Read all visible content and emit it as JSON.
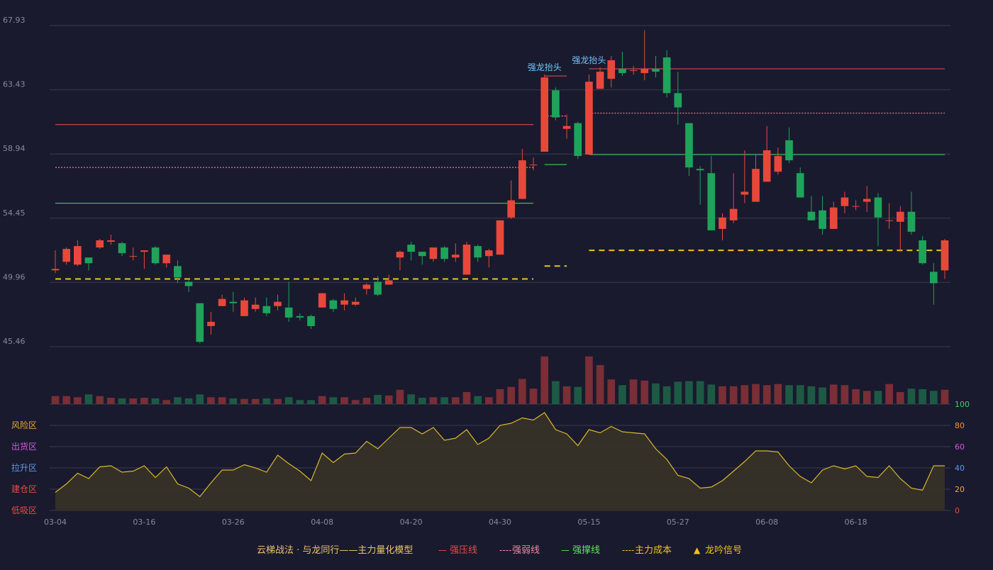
{
  "colors": {
    "background": "#191a2e",
    "grid": "#3a3b4e",
    "up": "#e8483a",
    "down": "#1fa35a",
    "up_volume": "#7a2e36",
    "down_volume": "#1d5a44",
    "pressure_line": "#d94b4b",
    "weak_line": "#e88a9a",
    "support_line": "#3db85a",
    "cost_line": "#f0c419",
    "signal_label": "#6fc8ff",
    "oscillator_line": "#d8b82a",
    "oscillator_fill": "#3a3426",
    "axis_text": "#8a8b96"
  },
  "chart_data": [
    {
      "type": "candlestick",
      "y_ticks": [
        "67.93",
        "63.43",
        "58.94",
        "54.45",
        "49.96",
        "45.46"
      ],
      "ylim": [
        45.46,
        67.93
      ],
      "x_ticks": [
        {
          "index": 0,
          "label": "03-04"
        },
        {
          "index": 8,
          "label": "03-16"
        },
        {
          "index": 16,
          "label": "03-26"
        },
        {
          "index": 24,
          "label": "04-08"
        },
        {
          "index": 32,
          "label": "04-20"
        },
        {
          "index": 40,
          "label": "04-30"
        },
        {
          "index": 48,
          "label": "05-15"
        },
        {
          "index": 56,
          "label": "05-27"
        },
        {
          "index": 64,
          "label": "06-08"
        },
        {
          "index": 72,
          "label": "06-18"
        }
      ],
      "ohlc": [
        [
          50.8,
          50.9,
          50.6,
          52.2
        ],
        [
          51.4,
          52.3,
          51.2,
          52.4
        ],
        [
          51.2,
          52.5,
          51.1,
          52.9
        ],
        [
          51.7,
          51.3,
          50.8,
          51.7
        ],
        [
          52.4,
          52.9,
          52.3,
          53.0
        ],
        [
          52.8,
          52.9,
          52.6,
          53.3
        ],
        [
          52.7,
          52.0,
          51.8,
          52.8
        ],
        [
          51.8,
          51.8,
          51.5,
          52.4
        ],
        [
          52.1,
          52.2,
          50.9,
          52.2
        ],
        [
          52.4,
          51.3,
          51.2,
          52.5
        ],
        [
          51.3,
          51.9,
          51.0,
          51.9
        ],
        [
          51.1,
          50.3,
          49.9,
          51.5
        ],
        [
          50.0,
          49.7,
          49.3,
          50.1
        ],
        [
          48.5,
          45.8,
          45.7,
          48.5
        ],
        [
          46.9,
          47.2,
          46.3,
          47.9
        ],
        [
          48.3,
          48.8,
          48.3,
          49.1
        ],
        [
          48.6,
          48.5,
          47.9,
          49.3
        ],
        [
          47.6,
          48.7,
          47.6,
          48.9
        ],
        [
          48.1,
          48.4,
          47.9,
          48.9
        ],
        [
          48.3,
          47.8,
          47.6,
          48.9
        ],
        [
          48.3,
          48.6,
          48.0,
          49.1
        ],
        [
          48.2,
          47.5,
          47.2,
          50.0
        ],
        [
          47.6,
          47.5,
          47.3,
          47.8
        ],
        [
          47.6,
          46.9,
          46.7,
          47.7
        ],
        [
          48.2,
          49.2,
          48.2,
          49.2
        ],
        [
          48.7,
          48.1,
          47.9,
          48.8
        ],
        [
          48.4,
          48.7,
          48.0,
          49.2
        ],
        [
          48.4,
          48.6,
          48.3,
          48.9
        ],
        [
          49.5,
          49.8,
          49.1,
          49.9
        ],
        [
          50.0,
          49.1,
          49.0,
          50.4
        ],
        [
          49.8,
          50.1,
          49.8,
          50.5
        ],
        [
          51.7,
          52.1,
          50.8,
          52.2
        ],
        [
          52.6,
          52.1,
          51.5,
          52.8
        ],
        [
          52.1,
          51.8,
          51.2,
          52.1
        ],
        [
          51.6,
          52.4,
          51.4,
          52.4
        ],
        [
          52.4,
          51.6,
          51.4,
          52.5
        ],
        [
          51.7,
          51.9,
          51.4,
          52.7
        ],
        [
          50.5,
          52.6,
          50.5,
          52.8
        ],
        [
          52.5,
          51.7,
          51.4,
          52.6
        ],
        [
          51.8,
          52.2,
          51.0,
          52.3
        ],
        [
          51.9,
          54.3,
          51.9,
          54.3
        ],
        [
          54.5,
          55.7,
          54.4,
          57.1
        ],
        [
          55.8,
          58.5,
          55.8,
          59.3
        ],
        [
          58.2,
          58.2,
          57.8,
          58.7
        ],
        [
          59.1,
          64.3,
          59.1,
          64.5
        ],
        [
          63.4,
          61.5,
          61.3,
          63.6
        ],
        [
          60.7,
          60.9,
          60.0,
          61.7
        ],
        [
          61.1,
          58.8,
          58.6,
          61.2
        ],
        [
          58.9,
          64.0,
          58.9,
          64.5
        ],
        [
          63.5,
          64.7,
          63.5,
          65.0
        ],
        [
          64.2,
          65.5,
          63.6,
          65.8
        ],
        [
          64.9,
          64.6,
          64.4,
          66.1
        ],
        [
          64.8,
          64.8,
          64.5,
          65.1
        ],
        [
          64.6,
          64.9,
          64.1,
          67.6
        ],
        [
          64.9,
          64.7,
          64.3,
          65.8
        ],
        [
          65.7,
          63.2,
          62.9,
          66.2
        ],
        [
          63.2,
          62.2,
          61.0,
          64.7
        ],
        [
          61.1,
          58.0,
          57.4,
          61.1
        ],
        [
          57.9,
          57.8,
          55.4,
          58.1
        ],
        [
          57.6,
          53.6,
          53.6,
          58.8
        ],
        [
          53.7,
          54.5,
          52.9,
          54.8
        ],
        [
          54.3,
          55.1,
          54.1,
          57.6
        ],
        [
          56.1,
          56.3,
          55.5,
          59.2
        ],
        [
          55.6,
          57.9,
          55.6,
          58.9
        ],
        [
          57.0,
          59.2,
          57.0,
          60.9
        ],
        [
          57.7,
          58.8,
          57.5,
          59.4
        ],
        [
          59.9,
          58.5,
          58.3,
          60.8
        ],
        [
          57.6,
          55.9,
          55.9,
          58.0
        ],
        [
          54.9,
          54.3,
          54.3,
          56.0
        ],
        [
          55.0,
          53.7,
          53.3,
          56.0
        ],
        [
          53.7,
          55.2,
          53.7,
          55.6
        ],
        [
          55.3,
          55.9,
          54.8,
          56.3
        ],
        [
          55.3,
          55.3,
          55.0,
          55.7
        ],
        [
          55.6,
          55.8,
          54.9,
          56.7
        ],
        [
          55.9,
          54.5,
          52.5,
          56.2
        ],
        [
          54.3,
          54.3,
          53.7,
          55.5
        ],
        [
          54.2,
          54.9,
          52.1,
          55.3
        ],
        [
          54.9,
          53.5,
          53.3,
          56.3
        ],
        [
          52.9,
          51.3,
          51.2,
          53.2
        ],
        [
          50.7,
          49.9,
          48.4,
          51.3
        ],
        [
          50.8,
          52.9,
          50.2,
          53.0
        ]
      ],
      "volume_ylim": [
        0,
        100
      ],
      "volumes": [
        14,
        14,
        12,
        17,
        14,
        11,
        10,
        10,
        11,
        10,
        7,
        12,
        10,
        17,
        12,
        12,
        10,
        9,
        9,
        10,
        9,
        12,
        7,
        7,
        14,
        12,
        12,
        7,
        11,
        16,
        15,
        25,
        17,
        11,
        12,
        12,
        12,
        21,
        14,
        12,
        26,
        30,
        44,
        27,
        83,
        40,
        31,
        30,
        83,
        68,
        43,
        33,
        43,
        41,
        36,
        31,
        39,
        40,
        40,
        34,
        31,
        31,
        33,
        35,
        33,
        35,
        33,
        33,
        31,
        29,
        34,
        33,
        26,
        23,
        23,
        35,
        21,
        27,
        26,
        23,
        25
      ],
      "annotations": [
        {
          "index": 44,
          "price": 64.5,
          "text": "强龙抬头"
        },
        {
          "index": 48,
          "price": 65.0,
          "text": "强龙抬头"
        }
      ],
      "series": [
        {
          "name": "强压线",
          "style": "solid",
          "color": "#d94b4b",
          "segments": [
            {
              "from": 0,
              "to": 43,
              "value": 61.0
            },
            {
              "from": 44,
              "to": 46,
              "value": 64.4
            },
            {
              "from": 48,
              "to": 80,
              "value": 64.9
            }
          ]
        },
        {
          "name": "强弱线",
          "style": "dotted",
          "color": "#e88a9a",
          "segments": [
            {
              "from": 0,
              "to": 43,
              "value": 58.0
            },
            {
              "from": 44,
              "to": 46,
              "value": 61.6
            },
            {
              "from": 48,
              "to": 80,
              "value": 61.8
            }
          ]
        },
        {
          "name": "强撑线",
          "style": "solid",
          "color": "#3db85a",
          "segments": [
            {
              "from": 0,
              "to": 43,
              "value": 55.5
            },
            {
              "from": 44,
              "to": 46,
              "value": 58.2
            },
            {
              "from": 48,
              "to": 80,
              "value": 58.9
            }
          ]
        },
        {
          "name": "主力成本",
          "style": "dashed",
          "color": "#f0c419",
          "segments": [
            {
              "from": 0,
              "to": 43,
              "value": 50.2
            },
            {
              "from": 44,
              "to": 46,
              "value": 51.1
            },
            {
              "from": 48,
              "to": 80,
              "value": 52.2
            }
          ]
        }
      ]
    },
    {
      "type": "area",
      "ylim": [
        0,
        100
      ],
      "right_ticks": [
        {
          "value": 100,
          "label": "100",
          "color": "#3fd45a"
        },
        {
          "value": 80,
          "label": "80",
          "color": "#e89a2a"
        },
        {
          "value": 60,
          "label": "60",
          "color": "#d05ad8"
        },
        {
          "value": 40,
          "label": "40",
          "color": "#5a9af0"
        },
        {
          "value": 20,
          "label": "20",
          "color": "#e8a83a"
        },
        {
          "value": 0,
          "label": "0",
          "color": "#e84a4a"
        }
      ],
      "zones": [
        {
          "value": 80,
          "label": "风险区",
          "color": "#e8a83a"
        },
        {
          "value": 60,
          "label": "出货区",
          "color": "#d05ad8"
        },
        {
          "value": 40,
          "label": "拉升区",
          "color": "#5a9af0"
        },
        {
          "value": 20,
          "label": "建仓区",
          "color": "#e84a4a"
        },
        {
          "value": 0,
          "label": "低吸区",
          "color": "#e84a4a"
        }
      ],
      "values": [
        17,
        25,
        35,
        30,
        41,
        42,
        36,
        37,
        42,
        31,
        41,
        25,
        21,
        13,
        26,
        38,
        38,
        43,
        40,
        36,
        52,
        44,
        37,
        28,
        54,
        45,
        53,
        54,
        65,
        58,
        68,
        78,
        78,
        72,
        78,
        66,
        68,
        76,
        62,
        68,
        80,
        82,
        87,
        85,
        92,
        76,
        72,
        61,
        76,
        73,
        79,
        74,
        73,
        72,
        58,
        48,
        33,
        30,
        21,
        22,
        28,
        37,
        46,
        56,
        56,
        55,
        42,
        32,
        26,
        38,
        42,
        39,
        42,
        32,
        31,
        42,
        30,
        21,
        19,
        42,
        42
      ]
    }
  ],
  "legend": {
    "title": "云梯战法 · 与龙同行——主力量化模型",
    "items": [
      {
        "symbol": "—",
        "label": "强压线",
        "color": "#e84a4a"
      },
      {
        "symbol": "----",
        "label": "强弱线",
        "color": "#f08aa0"
      },
      {
        "symbol": "—",
        "label": "强撑线",
        "color": "#5ee85a"
      },
      {
        "symbol": "----",
        "label": "主力成本",
        "color": "#f0c419"
      },
      {
        "symbol": "▲",
        "label": "龙吟信号",
        "color": "#f0c419"
      }
    ]
  }
}
